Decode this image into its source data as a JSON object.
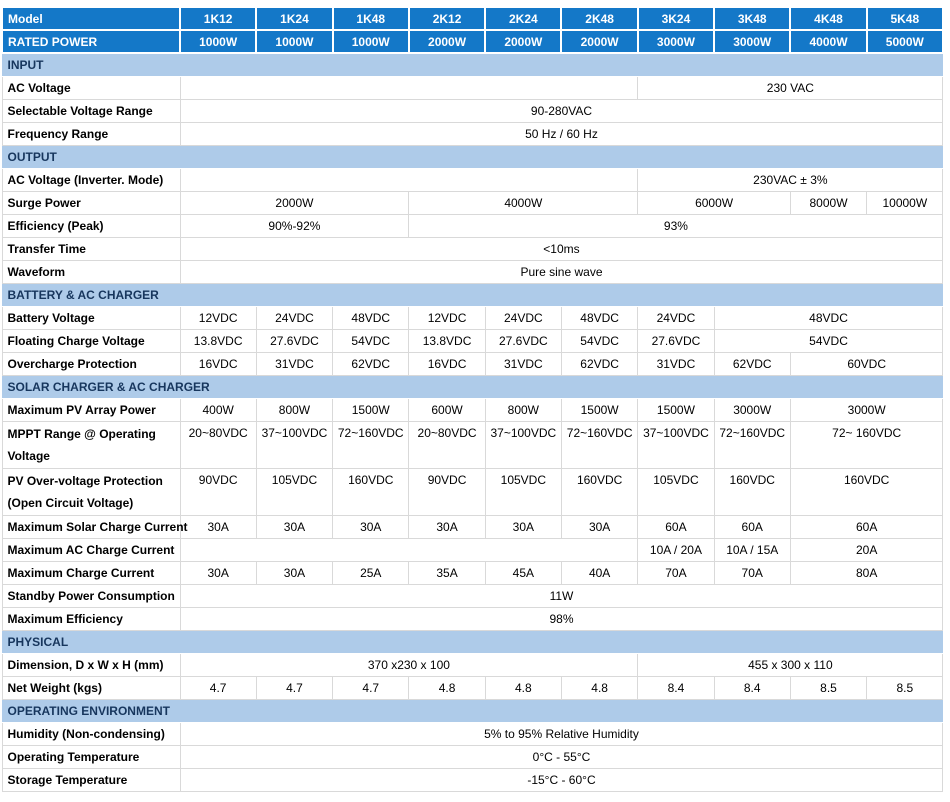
{
  "colors": {
    "header_bg": "#1478c8",
    "header_text": "#ffffff",
    "section_bg": "#aecbe9",
    "section_text": "#17365d",
    "body_border": "#d9d9d9",
    "body_text": "#000000"
  },
  "table": {
    "header": {
      "model_label": "Model",
      "models": [
        "1K12",
        "1K24",
        "1K48",
        "2K12",
        "2K24",
        "2K48",
        "3K24",
        "3K48",
        "4K48",
        "5K48"
      ],
      "rated_power_label": "RATED POWER",
      "rated_power": [
        "1000W",
        "1000W",
        "1000W",
        "2000W",
        "2000W",
        "2000W",
        "3000W",
        "3000W",
        "4000W",
        "5000W"
      ]
    },
    "sections": [
      {
        "title": "INPUT",
        "rows": [
          {
            "label": "AC Voltage",
            "cells": [
              {
                "span": 6,
                "text": ""
              },
              {
                "span": 4,
                "text": "230 VAC"
              }
            ]
          },
          {
            "label": "Selectable Voltage Range",
            "cells": [
              {
                "span": 10,
                "text": "90-280VAC"
              }
            ]
          },
          {
            "label": "Frequency Range",
            "cells": [
              {
                "span": 10,
                "text": "50 Hz / 60 Hz"
              }
            ]
          }
        ]
      },
      {
        "title": "OUTPUT",
        "rows": [
          {
            "label": "AC Voltage (Inverter. Mode)",
            "cells": [
              {
                "span": 6,
                "text": ""
              },
              {
                "span": 4,
                "text": "230VAC ± 3%"
              }
            ]
          },
          {
            "label": "Surge Power",
            "cells": [
              {
                "span": 3,
                "text": "2000W"
              },
              {
                "span": 3,
                "text": "4000W"
              },
              {
                "span": 2,
                "text": "6000W"
              },
              {
                "span": 1,
                "text": "8000W"
              },
              {
                "span": 1,
                "text": "10000W"
              }
            ]
          },
          {
            "label": "Efficiency (Peak)",
            "cells": [
              {
                "span": 3,
                "text": "90%-92%"
              },
              {
                "span": 7,
                "text": "93%"
              }
            ]
          },
          {
            "label": "Transfer Time",
            "cells": [
              {
                "span": 10,
                "text": "<10ms"
              }
            ]
          },
          {
            "label": "Waveform",
            "cells": [
              {
                "span": 10,
                "text": "Pure sine wave"
              }
            ]
          }
        ]
      },
      {
        "title": "BATTERY & AC CHARGER",
        "rows": [
          {
            "label": "Battery Voltage",
            "cells": [
              {
                "span": 1,
                "text": "12VDC"
              },
              {
                "span": 1,
                "text": "24VDC"
              },
              {
                "span": 1,
                "text": "48VDC"
              },
              {
                "span": 1,
                "text": "12VDC"
              },
              {
                "span": 1,
                "text": "24VDC"
              },
              {
                "span": 1,
                "text": "48VDC"
              },
              {
                "span": 1,
                "text": "24VDC"
              },
              {
                "span": 3,
                "text": "48VDC"
              }
            ]
          },
          {
            "label": "Floating Charge Voltage",
            "cells": [
              {
                "span": 1,
                "text": "13.8VDC"
              },
              {
                "span": 1,
                "text": "27.6VDC"
              },
              {
                "span": 1,
                "text": "54VDC"
              },
              {
                "span": 1,
                "text": "13.8VDC"
              },
              {
                "span": 1,
                "text": "27.6VDC"
              },
              {
                "span": 1,
                "text": "54VDC"
              },
              {
                "span": 1,
                "text": "27.6VDC"
              },
              {
                "span": 3,
                "text": "54VDC"
              }
            ]
          },
          {
            "label": "Overcharge Protection",
            "cells": [
              {
                "span": 1,
                "text": "16VDC"
              },
              {
                "span": 1,
                "text": "31VDC"
              },
              {
                "span": 1,
                "text": "62VDC"
              },
              {
                "span": 1,
                "text": "16VDC"
              },
              {
                "span": 1,
                "text": "31VDC"
              },
              {
                "span": 1,
                "text": "62VDC"
              },
              {
                "span": 1,
                "text": "31VDC"
              },
              {
                "span": 1,
                "text": "62VDC"
              },
              {
                "span": 2,
                "text": "60VDC"
              }
            ]
          }
        ]
      },
      {
        "title": "SOLAR CHARGER & AC CHARGER",
        "rows": [
          {
            "label": "Maximum PV Array Power",
            "cells": [
              {
                "span": 1,
                "text": "400W"
              },
              {
                "span": 1,
                "text": "800W"
              },
              {
                "span": 1,
                "text": "1500W"
              },
              {
                "span": 1,
                "text": "600W"
              },
              {
                "span": 1,
                "text": "800W"
              },
              {
                "span": 1,
                "text": "1500W"
              },
              {
                "span": 1,
                "text": "1500W"
              },
              {
                "span": 1,
                "text": "3000W"
              },
              {
                "span": 2,
                "text": "3000W"
              }
            ]
          },
          {
            "label": "MPPT Range @ Operating Voltage",
            "tall": true,
            "cells": [
              {
                "span": 1,
                "text": "20~80VDC"
              },
              {
                "span": 1,
                "text": "37~100VDC"
              },
              {
                "span": 1,
                "text": "72~160VDC"
              },
              {
                "span": 1,
                "text": "20~80VDC"
              },
              {
                "span": 1,
                "text": "37~100VDC"
              },
              {
                "span": 1,
                "text": "72~160VDC"
              },
              {
                "span": 1,
                "text": "37~100VDC"
              },
              {
                "span": 1,
                "text": "72~160VDC"
              },
              {
                "span": 2,
                "text": "72~ 160VDC"
              }
            ]
          },
          {
            "label": "PV Over-voltage Protection (Open Circuit Voltage)",
            "tall": true,
            "cells": [
              {
                "span": 1,
                "text": "90VDC"
              },
              {
                "span": 1,
                "text": "105VDC"
              },
              {
                "span": 1,
                "text": "160VDC"
              },
              {
                "span": 1,
                "text": "90VDC"
              },
              {
                "span": 1,
                "text": "105VDC"
              },
              {
                "span": 1,
                "text": "160VDC"
              },
              {
                "span": 1,
                "text": "105VDC"
              },
              {
                "span": 1,
                "text": "160VDC"
              },
              {
                "span": 2,
                "text": "160VDC"
              }
            ]
          },
          {
            "label": "Maximum Solar Charge Current",
            "cells": [
              {
                "span": 1,
                "text": "30A"
              },
              {
                "span": 1,
                "text": "30A"
              },
              {
                "span": 1,
                "text": "30A"
              },
              {
                "span": 1,
                "text": "30A"
              },
              {
                "span": 1,
                "text": "30A"
              },
              {
                "span": 1,
                "text": "30A"
              },
              {
                "span": 1,
                "text": "60A"
              },
              {
                "span": 1,
                "text": "60A"
              },
              {
                "span": 2,
                "text": "60A"
              }
            ]
          },
          {
            "label": "Maximum AC Charge Current",
            "cells": [
              {
                "span": 6,
                "text": ""
              },
              {
                "span": 1,
                "text": "10A / 20A"
              },
              {
                "span": 1,
                "text": "10A / 15A"
              },
              {
                "span": 2,
                "text": "20A"
              }
            ]
          },
          {
            "label": "Maximum Charge Current",
            "cells": [
              {
                "span": 1,
                "text": "30A"
              },
              {
                "span": 1,
                "text": "30A"
              },
              {
                "span": 1,
                "text": "25A"
              },
              {
                "span": 1,
                "text": "35A"
              },
              {
                "span": 1,
                "text": "45A"
              },
              {
                "span": 1,
                "text": "40A"
              },
              {
                "span": 1,
                "text": "70A"
              },
              {
                "span": 1,
                "text": "70A"
              },
              {
                "span": 2,
                "text": "80A"
              }
            ]
          },
          {
            "label": "Standby Power Consumption",
            "cells": [
              {
                "span": 10,
                "text": "11W"
              }
            ]
          },
          {
            "label": "Maximum Efficiency",
            "cells": [
              {
                "span": 10,
                "text": "98%"
              }
            ]
          }
        ]
      },
      {
        "title": "PHYSICAL",
        "rows": [
          {
            "label": "Dimension, D x W x H (mm)",
            "cells": [
              {
                "span": 6,
                "text": "370 x230 x 100"
              },
              {
                "span": 4,
                "text": "455 x 300 x 110"
              }
            ]
          },
          {
            "label": "Net Weight (kgs)",
            "cells": [
              {
                "span": 1,
                "text": "4.7"
              },
              {
                "span": 1,
                "text": "4.7"
              },
              {
                "span": 1,
                "text": "4.7"
              },
              {
                "span": 1,
                "text": "4.8"
              },
              {
                "span": 1,
                "text": "4.8"
              },
              {
                "span": 1,
                "text": "4.8"
              },
              {
                "span": 1,
                "text": "8.4"
              },
              {
                "span": 1,
                "text": "8.4"
              },
              {
                "span": 1,
                "text": "8.5"
              },
              {
                "span": 1,
                "text": "8.5"
              }
            ]
          }
        ]
      },
      {
        "title": "OPERATING ENVIRONMENT",
        "rows": [
          {
            "label": "Humidity (Non-condensing)",
            "cells": [
              {
                "span": 10,
                "text": "5% to 95% Relative Humidity"
              }
            ]
          },
          {
            "label": "Operating Temperature",
            "cells": [
              {
                "span": 10,
                "text": "0°C - 55°C"
              }
            ]
          },
          {
            "label": "Storage Temperature",
            "cells": [
              {
                "span": 10,
                "text": "-15°C - 60°C"
              }
            ]
          }
        ]
      }
    ]
  }
}
